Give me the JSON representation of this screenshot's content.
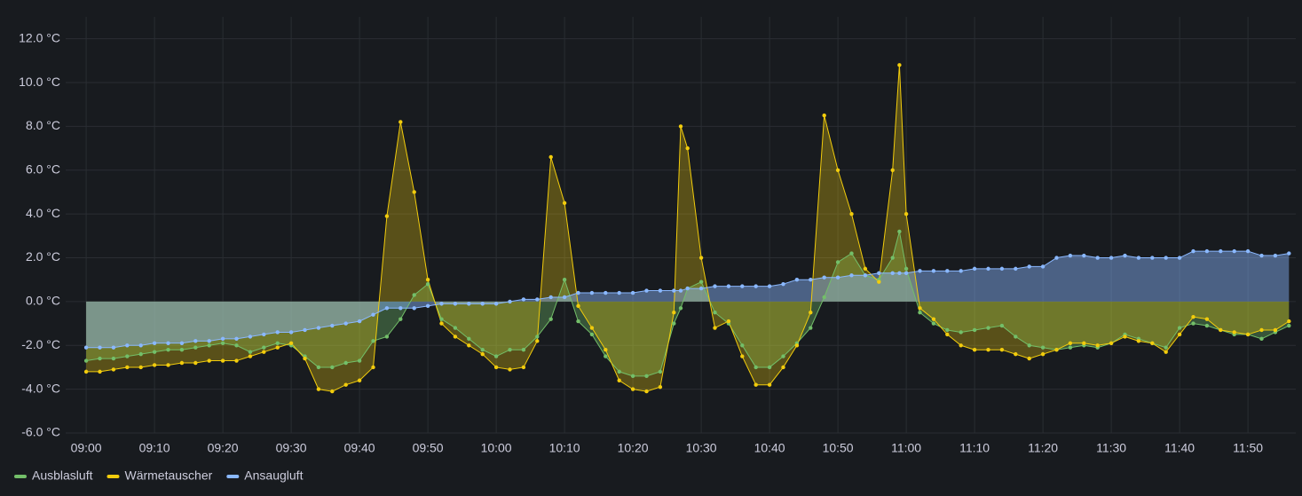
{
  "chart_data": {
    "type": "line",
    "x": [
      "09:00",
      "09:02",
      "09:04",
      "09:06",
      "09:08",
      "09:10",
      "09:12",
      "09:14",
      "09:16",
      "09:18",
      "09:20",
      "09:22",
      "09:24",
      "09:26",
      "09:28",
      "09:30",
      "09:32",
      "09:34",
      "09:36",
      "09:38",
      "09:40",
      "09:42",
      "09:44",
      "09:46",
      "09:48",
      "09:50",
      "09:52",
      "09:54",
      "09:56",
      "09:58",
      "10:00",
      "10:02",
      "10:04",
      "10:06",
      "10:08",
      "10:10",
      "10:12",
      "10:14",
      "10:16",
      "10:18",
      "10:20",
      "10:22",
      "10:24",
      "10:26",
      "10:27",
      "10:28",
      "10:30",
      "10:32",
      "10:34",
      "10:36",
      "10:38",
      "10:40",
      "10:42",
      "10:44",
      "10:46",
      "10:48",
      "10:50",
      "10:52",
      "10:54",
      "10:56",
      "10:58",
      "10:59",
      "11:00",
      "11:02",
      "11:04",
      "11:06",
      "11:08",
      "11:10",
      "11:12",
      "11:14",
      "11:16",
      "11:18",
      "11:20",
      "11:22",
      "11:24",
      "11:26",
      "11:28",
      "11:30",
      "11:32",
      "11:34",
      "11:36",
      "11:38",
      "11:40",
      "11:42",
      "11:44",
      "11:46",
      "11:48",
      "11:50",
      "11:52",
      "11:54",
      "11:56"
    ],
    "series": [
      {
        "name": "Ausblasluft",
        "color": "#73bf69",
        "values": [
          -2.7,
          -2.6,
          -2.6,
          -2.5,
          -2.4,
          -2.3,
          -2.2,
          -2.2,
          -2.1,
          -2.0,
          -1.9,
          -2.0,
          -2.3,
          -2.1,
          -1.9,
          -2.0,
          -2.5,
          -3.0,
          -3.0,
          -2.8,
          -2.7,
          -1.8,
          -1.6,
          -0.8,
          0.3,
          0.8,
          -0.8,
          -1.2,
          -1.7,
          -2.2,
          -2.5,
          -2.2,
          -2.2,
          -1.6,
          -0.8,
          1.0,
          -0.9,
          -1.5,
          -2.5,
          -3.2,
          -3.4,
          -3.4,
          -3.2,
          -1.0,
          -0.3,
          0.6,
          0.9,
          -0.5,
          -1.0,
          -2.0,
          -3.0,
          -3.0,
          -2.5,
          -1.9,
          -1.2,
          0.2,
          1.8,
          2.2,
          1.2,
          1.0,
          2.0,
          3.2,
          1.5,
          -0.5,
          -1.0,
          -1.3,
          -1.4,
          -1.3,
          -1.2,
          -1.1,
          -1.6,
          -2.0,
          -2.1,
          -2.2,
          -2.1,
          -2.0,
          -2.1,
          -1.9,
          -1.5,
          -1.7,
          -1.9,
          -2.1,
          -1.2,
          -1.0,
          -1.1,
          -1.3,
          -1.5,
          -1.5,
          -1.7,
          -1.4,
          -1.1
        ]
      },
      {
        "name": "Wärmetauscher",
        "color": "#f2cc0c",
        "values": [
          -3.2,
          -3.2,
          -3.1,
          -3.0,
          -3.0,
          -2.9,
          -2.9,
          -2.8,
          -2.8,
          -2.7,
          -2.7,
          -2.7,
          -2.5,
          -2.3,
          -2.1,
          -1.9,
          -2.6,
          -4.0,
          -4.1,
          -3.8,
          -3.6,
          -3.0,
          3.9,
          8.2,
          5.0,
          1.0,
          -1.0,
          -1.6,
          -2.0,
          -2.4,
          -3.0,
          -3.1,
          -3.0,
          -1.8,
          6.6,
          4.5,
          -0.2,
          -1.2,
          -2.2,
          -3.6,
          -4.0,
          -4.1,
          -3.9,
          -0.5,
          8.0,
          7.0,
          2.0,
          -1.2,
          -0.9,
          -2.5,
          -3.8,
          -3.8,
          -3.0,
          -2.0,
          -0.5,
          8.5,
          6.0,
          4.0,
          1.5,
          0.9,
          6.0,
          10.8,
          4.0,
          -0.3,
          -0.8,
          -1.5,
          -2.0,
          -2.2,
          -2.2,
          -2.2,
          -2.4,
          -2.6,
          -2.4,
          -2.2,
          -1.9,
          -1.9,
          -2.0,
          -1.9,
          -1.6,
          -1.8,
          -1.9,
          -2.3,
          -1.5,
          -0.7,
          -0.8,
          -1.3,
          -1.4,
          -1.5,
          -1.3,
          -1.3,
          -0.9
        ]
      },
      {
        "name": "Ansaugluft",
        "color": "#8ab8ff",
        "values": [
          -2.1,
          -2.1,
          -2.1,
          -2.0,
          -2.0,
          -1.9,
          -1.9,
          -1.9,
          -1.8,
          -1.8,
          -1.7,
          -1.7,
          -1.6,
          -1.5,
          -1.4,
          -1.4,
          -1.3,
          -1.2,
          -1.1,
          -1.0,
          -0.9,
          -0.6,
          -0.3,
          -0.3,
          -0.3,
          -0.2,
          -0.1,
          -0.1,
          -0.1,
          -0.1,
          -0.1,
          0.0,
          0.1,
          0.1,
          0.2,
          0.2,
          0.4,
          0.4,
          0.4,
          0.4,
          0.4,
          0.5,
          0.5,
          0.5,
          0.5,
          0.6,
          0.6,
          0.7,
          0.7,
          0.7,
          0.7,
          0.7,
          0.8,
          1.0,
          1.0,
          1.1,
          1.1,
          1.2,
          1.2,
          1.3,
          1.3,
          1.3,
          1.3,
          1.4,
          1.4,
          1.4,
          1.4,
          1.5,
          1.5,
          1.5,
          1.5,
          1.6,
          1.6,
          2.0,
          2.1,
          2.1,
          2.0,
          2.0,
          2.1,
          2.0,
          2.0,
          2.0,
          2.0,
          2.3,
          2.3,
          2.3,
          2.3,
          2.3,
          2.1,
          2.1,
          2.2
        ]
      }
    ],
    "xlim": [
      "08:57",
      "11:57"
    ],
    "xticks": [
      "09:00",
      "09:10",
      "09:20",
      "09:30",
      "09:40",
      "09:50",
      "10:00",
      "10:10",
      "10:20",
      "10:30",
      "10:40",
      "10:50",
      "11:00",
      "11:10",
      "11:20",
      "11:30",
      "11:40",
      "11:50"
    ],
    "ylim": [
      -6,
      13
    ],
    "yticks": [
      {
        "value": 12,
        "label": "12.0 °C"
      },
      {
        "value": 10,
        "label": "10.0 °C"
      },
      {
        "value": 8,
        "label": "8.0 °C"
      },
      {
        "value": 6,
        "label": "6.0 °C"
      },
      {
        "value": 4,
        "label": "4.0 °C"
      },
      {
        "value": 2,
        "label": "2.0 °C"
      },
      {
        "value": 0,
        "label": "0.0 °C"
      },
      {
        "value": -2,
        "label": "-2.0 °C"
      },
      {
        "value": -4,
        "label": "-4.0 °C"
      },
      {
        "value": -6,
        "label": "-6.0 °C"
      }
    ],
    "grid": true,
    "legend": "bottom-left"
  }
}
